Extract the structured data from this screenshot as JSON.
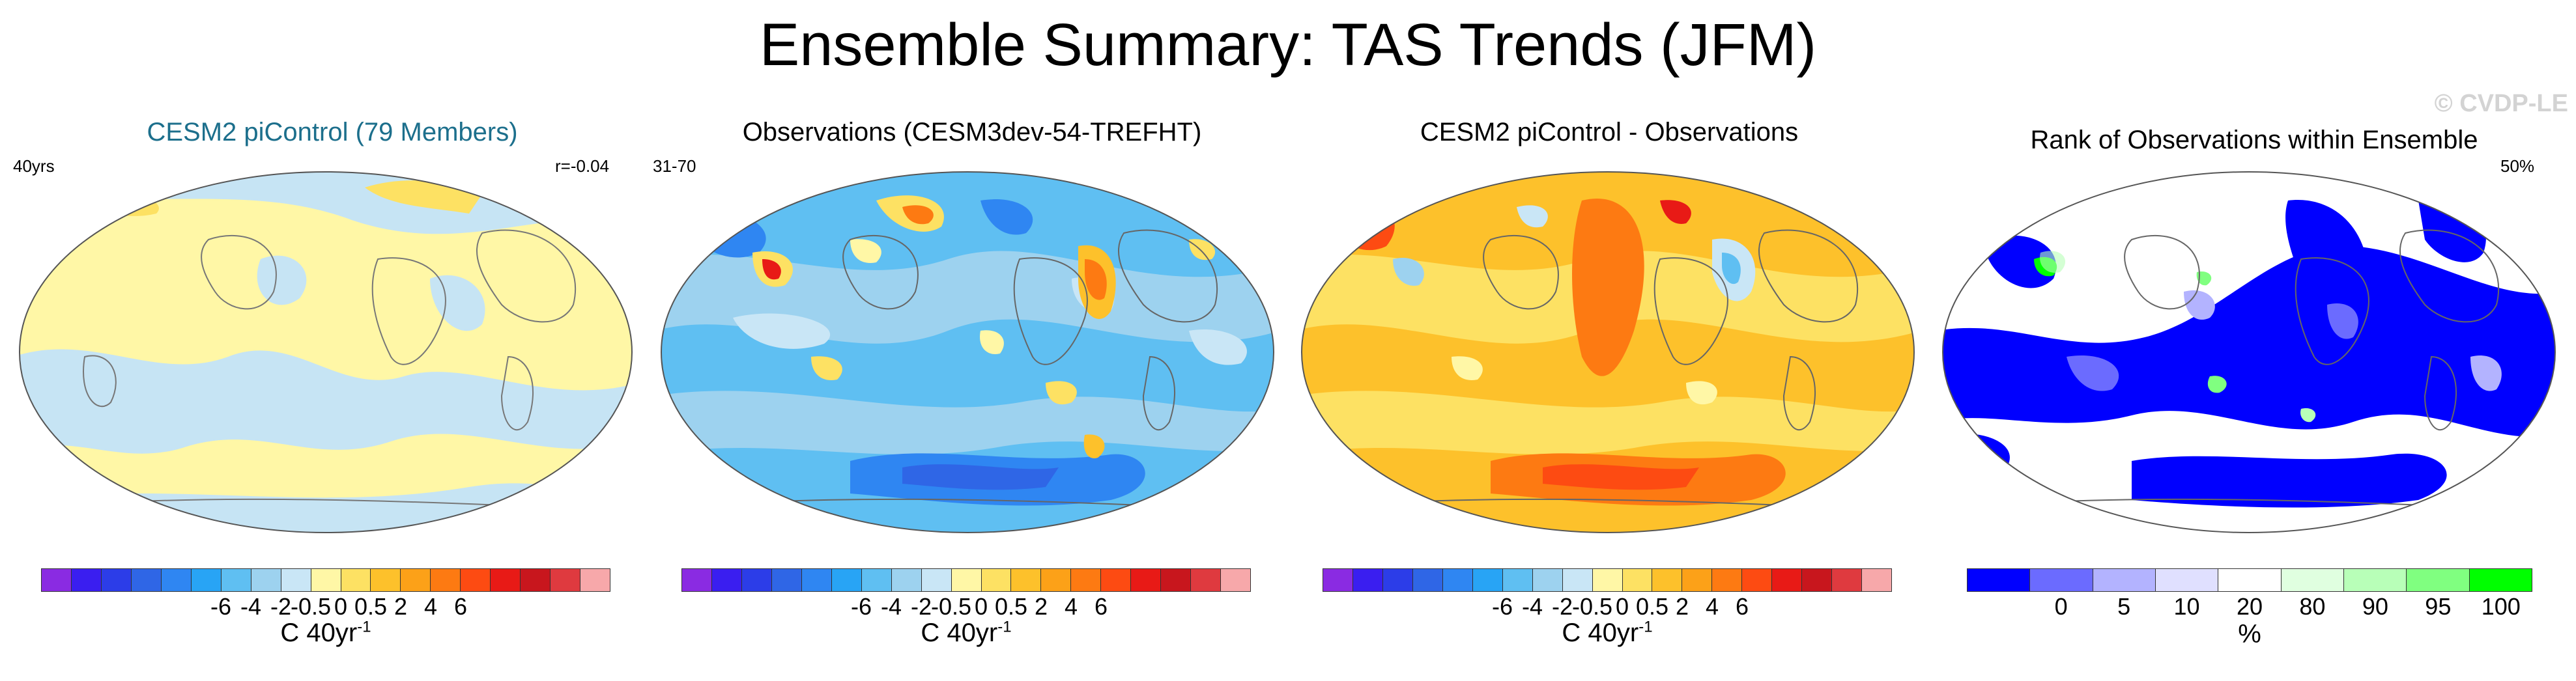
{
  "title": "Ensemble Summary: TAS Trends (JFM)",
  "watermark": "© CVDP-LE",
  "panels": [
    {
      "title": "CESM2 piControl (79 Members)",
      "title_color": "#1c6f8c",
      "left_label": "40yrs",
      "right_label": "r=-0.04"
    },
    {
      "title": "Observations (CESM3dev-54-TREFHT)",
      "title_color": "#000000",
      "left_label": "31-70",
      "right_label": ""
    },
    {
      "title": "CESM2 piControl - Observations",
      "title_color": "#000000",
      "left_label": "",
      "right_label": ""
    },
    {
      "title": "Rank of Observations within Ensemble",
      "title_color": "#000000",
      "left_label": "",
      "right_label": "50%"
    }
  ],
  "colorbars": {
    "temperature": {
      "colors": [
        "#8a2be2",
        "#3a1ef0",
        "#2c3de8",
        "#2f66e6",
        "#2f86f2",
        "#28a4f5",
        "#5fbff2",
        "#9dd2ef",
        "#c9e6f6",
        "#fff7a6",
        "#fde163",
        "#fdc12b",
        "#fca118",
        "#fd7a12",
        "#fd4b12",
        "#e81a16",
        "#c8161d",
        "#df3a3f",
        "#f7a8aa"
      ],
      "ticks": [
        "-6",
        "-4",
        "-2",
        "-0.5",
        "0",
        "0.5",
        "2",
        "4",
        "6"
      ],
      "label_text": "C 40yr",
      "label_sup": "-1"
    },
    "rank": {
      "colors": [
        "#0000ff",
        "#6b6bff",
        "#b3b3ff",
        "#e0e0ff",
        "#ffffff",
        "#e0ffe0",
        "#b8ffb8",
        "#80ff80",
        "#00ff00"
      ],
      "ticks": [
        "0",
        "5",
        "10",
        "20",
        "80",
        "90",
        "95",
        "100"
      ],
      "label_text": "%"
    }
  }
}
